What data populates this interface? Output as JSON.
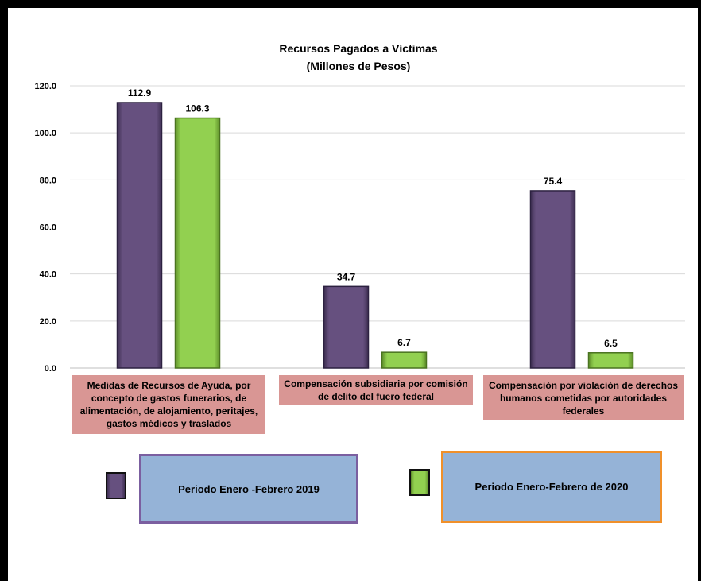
{
  "chart_data": {
    "type": "bar",
    "title": "Recursos Pagados a Víctimas",
    "subtitle": "(Millones de Pesos)",
    "categories": [
      "Medidas de Recursos de Ayuda, por concepto de gastos funerarios, de alimentación, de alojamiento, peritajes, gastos médicos y traslados",
      "Compensación subsidiaria por comisión de delito del fuero federal",
      "Compensación por violación de derechos humanos cometidas por autoridades federales"
    ],
    "series": [
      {
        "name": "Periodo Enero -Febrero 2019",
        "values": [
          112.9,
          34.7,
          75.4
        ],
        "color": "#66507f",
        "labels": [
          "112.9",
          "34.7",
          "75.4"
        ]
      },
      {
        "name": "Periodo Enero-Febrero de 2020",
        "values": [
          106.3,
          6.7,
          6.5
        ],
        "color": "#92d050",
        "labels": [
          "106.3",
          "6.7",
          "6.5"
        ]
      }
    ],
    "yticks": [
      "0.0",
      "20.0",
      "40.0",
      "60.0",
      "80.0",
      "100.0",
      "120.0"
    ],
    "ylim": [
      0,
      120
    ],
    "grid": true,
    "legend_position": "bottom"
  },
  "legend": {
    "series1_label": "Periodo Enero -Febrero 2019",
    "series2_label": "Periodo Enero-Febrero de 2020",
    "series1_border": "#7b5fa0",
    "series2_border": "#f0902a"
  }
}
